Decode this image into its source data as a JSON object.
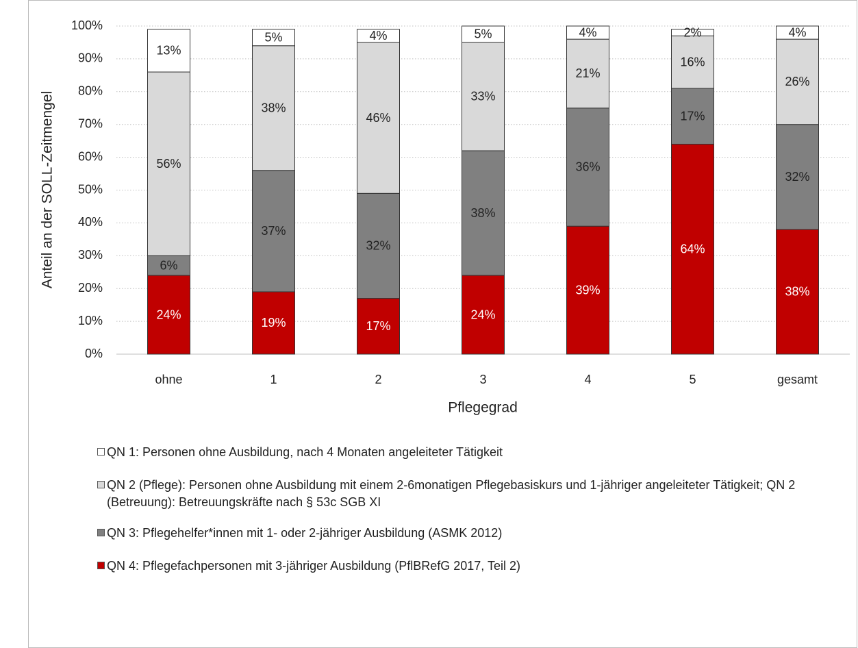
{
  "chart_data": {
    "type": "stacked_bar",
    "y_label": "Anteil an der SOLL-Zeitmengel",
    "x_label": "Pflegegrad",
    "categories": [
      "ohne",
      "1",
      "2",
      "3",
      "4",
      "5",
      "gesamt"
    ],
    "series": [
      {
        "name": "QN 4: Pflegefachpersonen mit 3-jähriger Ausbildung (PflBRefG 2017, Teil 2)",
        "color": "#c00000",
        "label_color": "#ffffff",
        "values": [
          24,
          19,
          17,
          24,
          39,
          64,
          38
        ],
        "value_labels": [
          "24%",
          "19%",
          "17%",
          "24%",
          "39%",
          "64%",
          "38%"
        ]
      },
      {
        "name": "QN 3: Pflegehelfer*innen mit 1- oder 2-jähriger Ausbildung (ASMK 2012)",
        "color": "#808080",
        "label_color": "#222222",
        "values": [
          6,
          37,
          32,
          38,
          36,
          17,
          32
        ],
        "value_labels": [
          "6%",
          "37%",
          "32%",
          "38%",
          "36%",
          "17%",
          "32%"
        ]
      },
      {
        "name": "QN 2 (Pflege): Personen ohne Ausbildung mit einem 2-6monatigen Pflegebasiskurs und 1-jähriger angeleiteter Tätigkeit; QN 2 (Betreuung): Betreuungskräfte nach § 53c SGB XI",
        "color": "#d9d9d9",
        "label_color": "#222222",
        "values": [
          56,
          38,
          46,
          33,
          21,
          16,
          26
        ],
        "value_labels": [
          "56%",
          "38%",
          "46%",
          "33%",
          "21%",
          "16%",
          "26%"
        ]
      },
      {
        "name": "QN 1: Personen ohne Ausbildung, nach 4 Monaten angeleiteter Tätigkeit",
        "color": "#ffffff",
        "label_color": "#222222",
        "values": [
          13,
          5,
          4,
          5,
          4,
          2,
          4
        ],
        "value_labels": [
          "13%",
          "5%",
          "4%",
          "5%",
          "4%",
          "2%",
          "4%"
        ]
      }
    ],
    "ylim": [
      0,
      100
    ],
    "yticks": [
      {
        "value": 0,
        "label": "0%"
      },
      {
        "value": 10,
        "label": "10%"
      },
      {
        "value": 20,
        "label": "20%"
      },
      {
        "value": 30,
        "label": "30%"
      },
      {
        "value": 40,
        "label": "40%"
      },
      {
        "value": 50,
        "label": "50%"
      },
      {
        "value": 60,
        "label": "60%"
      },
      {
        "value": 70,
        "label": "70%"
      },
      {
        "value": 80,
        "label": "80%"
      },
      {
        "value": 90,
        "label": "90%"
      },
      {
        "value": 100,
        "label": "100%"
      }
    ],
    "grid": true,
    "legend": "bottom"
  }
}
